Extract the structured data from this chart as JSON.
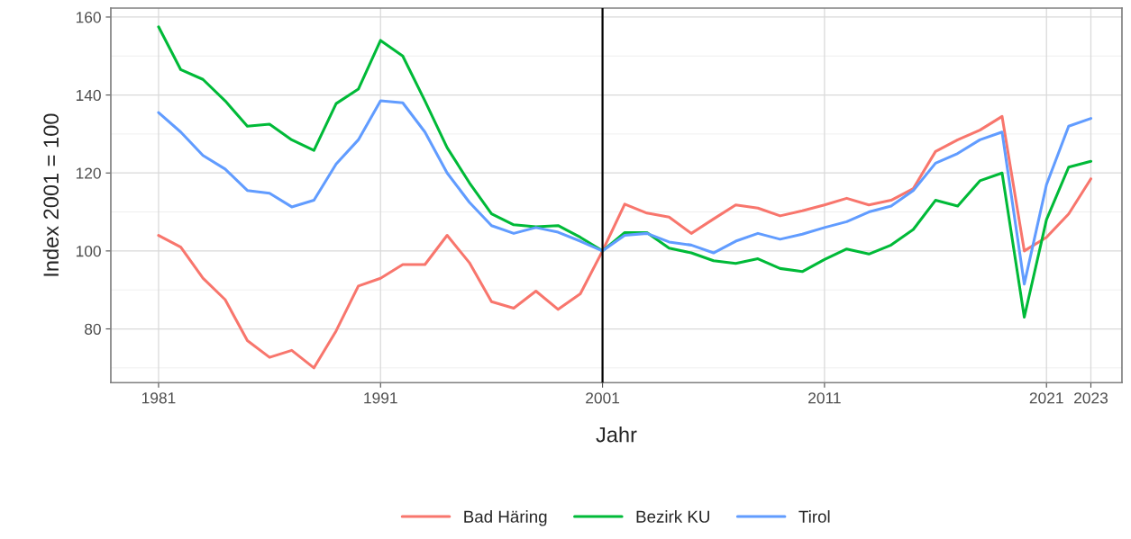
{
  "chart_data": {
    "type": "line",
    "xlabel": "Jahr",
    "ylabel": "Index 2001 = 100",
    "x": [
      1981,
      1982,
      1983,
      1984,
      1985,
      1986,
      1987,
      1988,
      1989,
      1990,
      1991,
      1992,
      1993,
      1994,
      1995,
      1996,
      1997,
      1998,
      1999,
      2000,
      2001,
      2002,
      2003,
      2004,
      2005,
      2006,
      2007,
      2008,
      2009,
      2010,
      2011,
      2012,
      2013,
      2014,
      2015,
      2016,
      2017,
      2018,
      2019,
      2020,
      2021,
      2022,
      2023
    ],
    "series": [
      {
        "name": "Bad Häring",
        "color": "#f8766d",
        "values": [
          104,
          101,
          93,
          87.5,
          77,
          72.7,
          74.5,
          70,
          79.5,
          91,
          93,
          96.5,
          96.5,
          104,
          97,
          87,
          85.3,
          89.7,
          85,
          89,
          100,
          112,
          109.7,
          108.7,
          104.5,
          108.2,
          111.8,
          111,
          109,
          110.3,
          111.8,
          113.5,
          111.8,
          113,
          116,
          125.5,
          128.5,
          131,
          134.5,
          100,
          103.5,
          109.5,
          118.5
        ]
      },
      {
        "name": "Bezirk KU",
        "color": "#00ba38",
        "values": [
          157.5,
          146.5,
          144,
          138.5,
          132,
          132.5,
          128.5,
          125.8,
          137.8,
          141.5,
          154,
          150,
          138.5,
          126.5,
          117.5,
          109.5,
          106.7,
          106.2,
          106.5,
          103.5,
          100,
          104.7,
          104.7,
          100.7,
          99.5,
          97.5,
          96.8,
          98,
          95.5,
          94.7,
          97.8,
          100.5,
          99.2,
          101.5,
          105.5,
          113,
          111.5,
          118,
          120,
          83,
          108,
          121.5,
          123
        ]
      },
      {
        "name": "Tirol",
        "color": "#619cff",
        "values": [
          135.5,
          130.5,
          124.5,
          121,
          115.5,
          114.8,
          111.3,
          113,
          122.3,
          128.5,
          138.5,
          138,
          130.5,
          120,
          112.5,
          106.5,
          104.5,
          106,
          104.8,
          102.5,
          100,
          104,
          104.5,
          102.3,
          101.5,
          99.5,
          102.5,
          104.5,
          103,
          104.3,
          106,
          107.5,
          110,
          111.5,
          115.5,
          122.5,
          125,
          128.5,
          130.5,
          91.5,
          117,
          132,
          134
        ]
      }
    ],
    "xlim": [
      1978.85,
      2024.4
    ],
    "xticks": [
      1981,
      1991,
      2001,
      2011,
      2021,
      2023
    ],
    "ylim": [
      66.2,
      162.3
    ],
    "yticks": [
      80,
      100,
      120,
      140,
      160
    ],
    "ref_lines": [
      {
        "axis": "x",
        "value": 2001,
        "color": "#000000",
        "line_style": "solid"
      }
    ],
    "grid": true,
    "legend": "bottom",
    "marker": "none",
    "line_style": "solid"
  }
}
